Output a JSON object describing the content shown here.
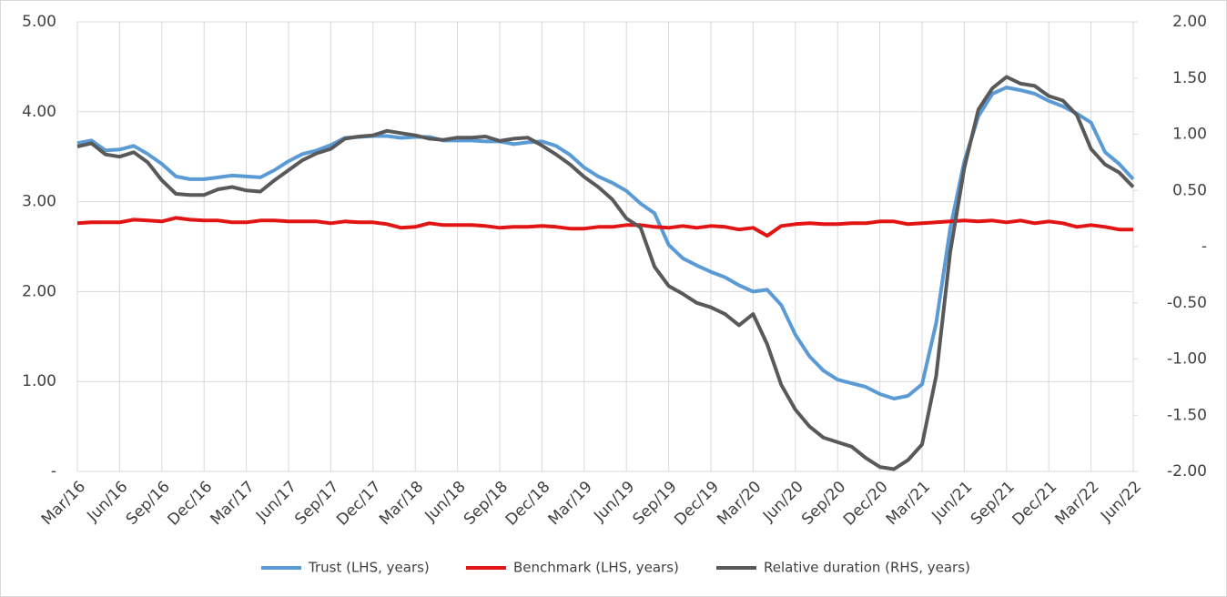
{
  "chart_data": {
    "type": "line",
    "categories": [
      "Mar/16",
      null,
      null,
      "Jun/16",
      null,
      null,
      "Sep/16",
      null,
      null,
      "Dec/16",
      null,
      null,
      "Mar/17",
      null,
      null,
      "Jun/17",
      null,
      null,
      "Sep/17",
      null,
      null,
      "Dec/17",
      null,
      null,
      "Mar/18",
      null,
      null,
      "Jun/18",
      null,
      null,
      "Sep/18",
      null,
      null,
      "Dec/18",
      null,
      null,
      "Mar/19",
      null,
      null,
      "Jun/19",
      null,
      null,
      "Sep/19",
      null,
      null,
      "Dec/19",
      null,
      null,
      "Mar/20",
      null,
      null,
      "Jun/20",
      null,
      null,
      "Sep/20",
      null,
      null,
      "Dec/20",
      null,
      null,
      "Mar/21",
      null,
      null,
      "Jun/21",
      null,
      null,
      "Sep/21",
      null,
      null,
      "Dec/21",
      null,
      null,
      "Mar/22",
      null,
      null,
      "Jun/22"
    ],
    "series": [
      {
        "name": "Trust (LHS, years)",
        "color": "#5b9bd5",
        "values": [
          3.65,
          3.68,
          3.57,
          3.58,
          3.62,
          3.53,
          3.42,
          3.28,
          3.25,
          3.25,
          3.27,
          3.29,
          3.28,
          3.27,
          3.35,
          3.45,
          3.53,
          3.57,
          3.63,
          3.71,
          3.72,
          3.73,
          3.73,
          3.71,
          3.72,
          3.72,
          3.68,
          3.68,
          3.68,
          3.67,
          3.67,
          3.64,
          3.66,
          3.67,
          3.62,
          3.52,
          3.38,
          3.28,
          3.21,
          3.12,
          2.98,
          2.87,
          2.52,
          2.37,
          2.29,
          2.22,
          2.16,
          2.07,
          2.0,
          2.02,
          1.85,
          1.52,
          1.28,
          1.12,
          1.02,
          0.98,
          0.94,
          0.86,
          0.81,
          0.84,
          0.97,
          1.65,
          2.7,
          3.45,
          3.95,
          4.2,
          4.27,
          4.24,
          4.2,
          4.12,
          4.06,
          3.98,
          3.88,
          3.55,
          3.42,
          3.25
        ]
      },
      {
        "name": "Benchmark (LHS, years)",
        "color": "#e31414",
        "values": [
          2.76,
          2.77,
          2.77,
          2.77,
          2.8,
          2.79,
          2.78,
          2.82,
          2.8,
          2.79,
          2.79,
          2.77,
          2.77,
          2.79,
          2.79,
          2.78,
          2.78,
          2.78,
          2.76,
          2.78,
          2.77,
          2.77,
          2.75,
          2.71,
          2.72,
          2.76,
          2.74,
          2.74,
          2.74,
          2.73,
          2.71,
          2.72,
          2.72,
          2.73,
          2.72,
          2.7,
          2.7,
          2.72,
          2.72,
          2.74,
          2.74,
          2.72,
          2.71,
          2.73,
          2.71,
          2.73,
          2.72,
          2.69,
          2.71,
          2.62,
          2.73,
          2.75,
          2.76,
          2.75,
          2.75,
          2.76,
          2.76,
          2.78,
          2.78,
          2.75,
          2.76,
          2.77,
          2.78,
          2.79,
          2.78,
          2.79,
          2.77,
          2.79,
          2.76,
          2.78,
          2.76,
          2.72,
          2.74,
          2.72,
          2.69,
          2.69
        ]
      },
      {
        "name": "Relative duration (RHS, years)",
        "color": "#595959",
        "axis": "y2",
        "values": [
          0.89,
          0.92,
          0.82,
          0.8,
          0.84,
          0.75,
          0.59,
          0.47,
          0.46,
          0.46,
          0.51,
          0.53,
          0.5,
          0.49,
          0.59,
          0.68,
          0.77,
          0.83,
          0.87,
          0.96,
          0.98,
          0.99,
          1.03,
          1.01,
          0.99,
          0.96,
          0.95,
          0.97,
          0.97,
          0.98,
          0.94,
          0.96,
          0.97,
          0.9,
          0.82,
          0.73,
          0.62,
          0.53,
          0.42,
          0.25,
          0.17,
          -0.18,
          -0.35,
          -0.42,
          -0.5,
          -0.54,
          -0.6,
          -0.7,
          -0.6,
          -0.87,
          -1.23,
          -1.45,
          -1.6,
          -1.7,
          -1.74,
          -1.78,
          -1.88,
          -1.96,
          -1.98,
          -1.9,
          -1.76,
          -1.15,
          -0.05,
          0.7,
          1.22,
          1.41,
          1.51,
          1.45,
          1.43,
          1.34,
          1.3,
          1.17,
          0.87,
          0.73,
          0.66,
          0.53
        ]
      }
    ],
    "ylim": [
      0,
      5
    ],
    "yticks": [
      {
        "value": 0,
        "label": "-"
      },
      {
        "value": 1,
        "label": "1.00"
      },
      {
        "value": 2,
        "label": "2.00"
      },
      {
        "value": 3,
        "label": "3.00"
      },
      {
        "value": 4,
        "label": "4.00"
      },
      {
        "value": 5,
        "label": "5.00"
      }
    ],
    "y2lim": [
      -2,
      2
    ],
    "y2ticks": [
      {
        "value": -2,
        "label": "-2.00"
      },
      {
        "value": -1.5,
        "label": "-1.50"
      },
      {
        "value": -1,
        "label": "-1.00"
      },
      {
        "value": -0.5,
        "label": "-0.50"
      },
      {
        "value": 0,
        "label": "-"
      },
      {
        "value": 0.5,
        "label": "0.50"
      },
      {
        "value": 1,
        "label": "1.00"
      },
      {
        "value": 1.5,
        "label": "1.50"
      },
      {
        "value": 2,
        "label": "2.00"
      }
    ],
    "grid": true,
    "legend": "bottom"
  }
}
